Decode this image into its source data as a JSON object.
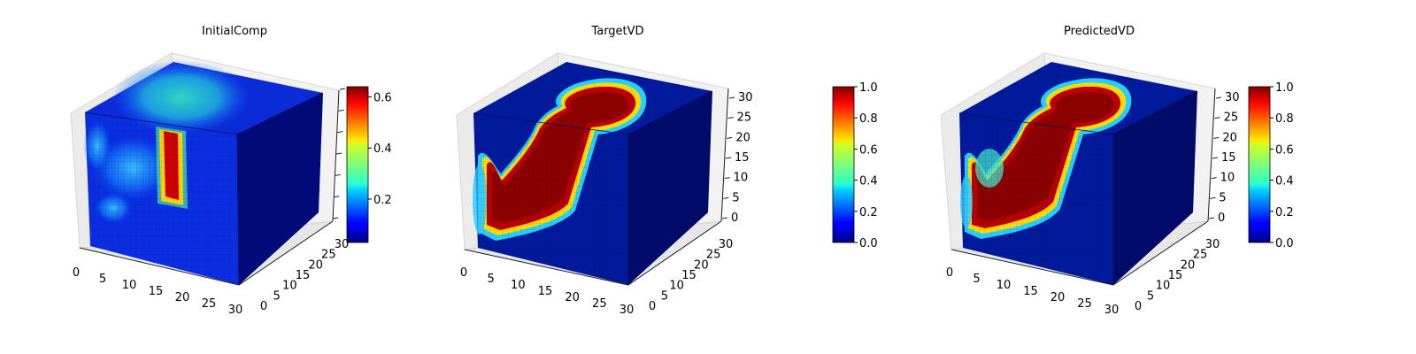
{
  "colormap": "jet",
  "chart_data": [
    {
      "type": "heatmap",
      "title": "InitialComp",
      "xticks": [
        "0",
        "5",
        "10",
        "15",
        "20",
        "25",
        "30"
      ],
      "yticks": [
        "0",
        "5",
        "10",
        "15",
        "20",
        "25",
        "30"
      ],
      "zticks": [
        "",
        "",
        "",
        "",
        "",
        "",
        ""
      ],
      "colorbar": {
        "min": 0.03,
        "max": 0.64,
        "ticks": [
          "0.2",
          "0.4",
          "0.6"
        ],
        "tick_values": [
          0.2,
          0.4,
          0.6
        ]
      }
    },
    {
      "type": "heatmap",
      "title": "TargetVD",
      "xticks": [
        "0",
        "5",
        "10",
        "15",
        "20",
        "25",
        "30"
      ],
      "yticks": [
        "0",
        "5",
        "10",
        "15",
        "20",
        "25",
        "30"
      ],
      "zticks": [
        "0",
        "5",
        "10",
        "15",
        "20",
        "25",
        "30"
      ],
      "colorbar": {
        "min": 0.0,
        "max": 1.0,
        "ticks": [
          "0.0",
          "0.2",
          "0.4",
          "0.6",
          "0.8",
          "1.0"
        ],
        "tick_values": [
          0.0,
          0.2,
          0.4,
          0.6,
          0.8,
          1.0
        ]
      }
    },
    {
      "type": "heatmap",
      "title": "PredictedVD",
      "xticks": [
        "0",
        "5",
        "10",
        "15",
        "20",
        "25",
        "30"
      ],
      "yticks": [
        "0",
        "5",
        "10",
        "15",
        "20",
        "25",
        "30"
      ],
      "zticks": [
        "0",
        "5",
        "10",
        "15",
        "20",
        "25",
        "30"
      ],
      "colorbar": {
        "min": 0.0,
        "max": 1.0,
        "ticks": [
          "0.0",
          "0.2",
          "0.4",
          "0.6",
          "0.8",
          "1.0"
        ],
        "tick_values": [
          0.0,
          0.2,
          0.4,
          0.6,
          0.8,
          1.0
        ]
      }
    }
  ]
}
